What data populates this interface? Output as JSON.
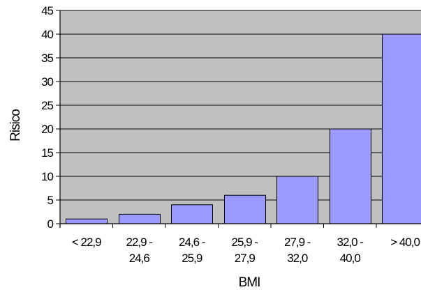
{
  "chart_data": {
    "type": "bar",
    "title": "",
    "xlabel": "BMI",
    "ylabel": "Risico",
    "categories": [
      [
        "< 22,9"
      ],
      [
        "22,9 -",
        "24,6"
      ],
      [
        "24,6 -",
        "25,9"
      ],
      [
        "25,9 -",
        "27,9"
      ],
      [
        "27,9 -",
        "32,0"
      ],
      [
        "32,0 -",
        "40,0"
      ],
      [
        "> 40,0"
      ]
    ],
    "values": [
      1,
      2,
      4,
      6,
      10,
      20,
      40
    ],
    "ylim": [
      0,
      45
    ],
    "yticks": [
      0,
      5,
      10,
      15,
      20,
      25,
      30,
      35,
      40,
      45
    ],
    "grid": true,
    "legend": "none",
    "colors": {
      "plot_background": "#c0c0c0",
      "bar_fill": "#9999ff",
      "bar_stroke": "#000000",
      "grid": "#000000"
    }
  }
}
